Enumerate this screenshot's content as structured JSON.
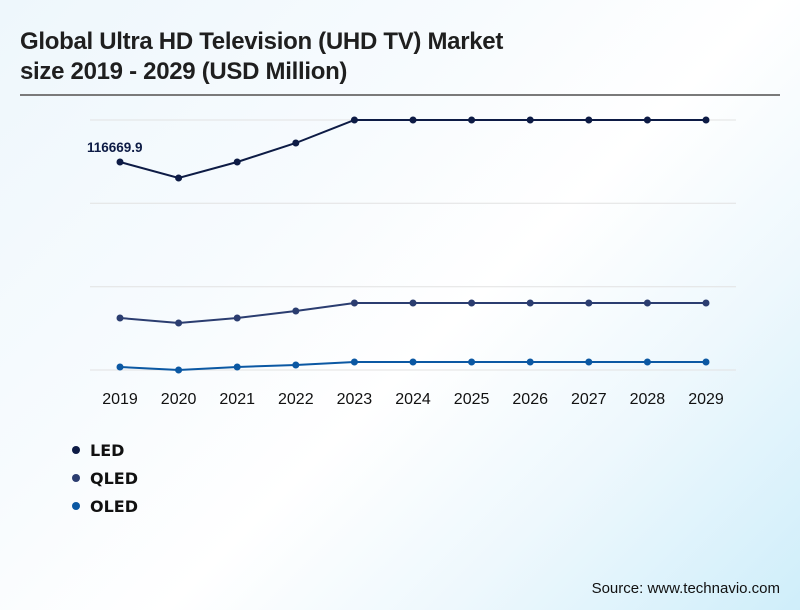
{
  "title_line1": "Global Ultra HD Television (UHD TV) Market",
  "title_line2": "size 2019 - 2029 (USD Million)",
  "source": "Source: www.technavio.com",
  "chart_data": {
    "type": "line",
    "title": "Global Ultra HD Television (UHD TV) Market size 2019 - 2029 (USD Million)",
    "xlabel": "",
    "ylabel": "USD Million",
    "categories": [
      "2019",
      "2020",
      "2021",
      "2022",
      "2023",
      "2024",
      "2025",
      "2026",
      "2027",
      "2028",
      "2029"
    ],
    "ylim": [
      0,
      140000
    ],
    "grid": true,
    "legend_position": "bottom-left",
    "series": [
      {
        "name": "LED",
        "color": "#0d1b45",
        "values": [
          116669.9,
          107700,
          116670,
          127330,
          140230,
          140230,
          140230,
          140230,
          140230,
          140230,
          140230
        ]
      },
      {
        "name": "QLED",
        "color": "#2b3d70",
        "values": [
          29170,
          26360,
          29170,
          33090,
          37580,
          37580,
          37580,
          37580,
          37580,
          37580,
          37580
        ]
      },
      {
        "name": "OLED",
        "color": "#0b58a3",
        "values": [
          1680,
          0,
          1680,
          2800,
          4490,
          4490,
          4490,
          4490,
          4490,
          4490,
          4490
        ]
      }
    ],
    "annotations": [
      {
        "series": "LED",
        "category": "2019",
        "text": "116669.9"
      }
    ]
  }
}
